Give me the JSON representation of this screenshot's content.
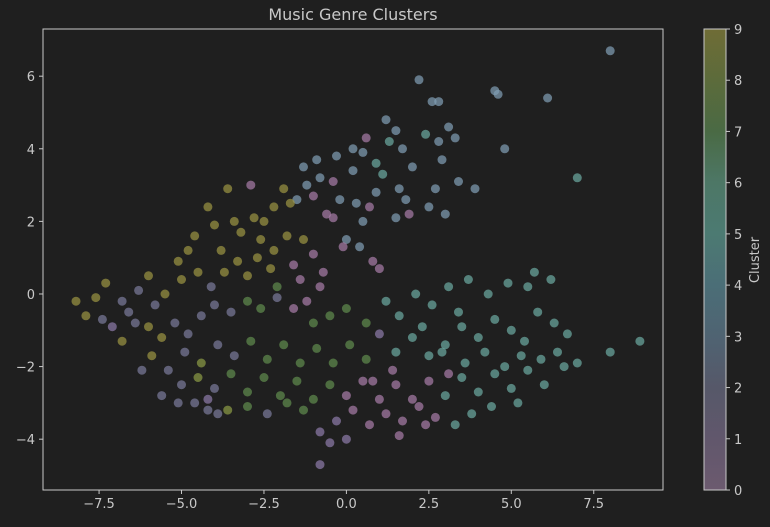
{
  "chart_data": {
    "type": "scatter",
    "title": "Music Genre Clusters",
    "xlabel": "",
    "ylabel": "",
    "xlim": [
      -9.2,
      9.6
    ],
    "ylim": [
      -5.4,
      7.3
    ],
    "xticks": [
      -7.5,
      -5.0,
      -2.5,
      0.0,
      2.5,
      5.0,
      7.5
    ],
    "yticks": [
      -4,
      -2,
      0,
      2,
      4,
      6
    ],
    "xtick_labels": [
      "−7.5",
      "−5.0",
      "−2.5",
      "0.0",
      "2.5",
      "5.0",
      "7.5"
    ],
    "ytick_labels": [
      "−4",
      "−2",
      "0",
      "2",
      "4",
      "6"
    ],
    "grid": false,
    "colorbar": {
      "label": "Cluster",
      "min": 0,
      "max": 9,
      "ticks": [
        0,
        1,
        2,
        3,
        4,
        5,
        6,
        7,
        8,
        9
      ],
      "tick_labels": [
        "0",
        "1",
        "2",
        "3",
        "4",
        "5",
        "6",
        "7",
        "8",
        "9"
      ],
      "colors": [
        "#6c5a6f",
        "#61576c",
        "#565869",
        "#4f6372",
        "#4b6e77",
        "#4c7a72",
        "#4d7766",
        "#4a6a44",
        "#5c6b3b",
        "#6f6c36"
      ]
    },
    "cluster_colors": {
      "0": "#a67ca6",
      "1": "#8c7aa8",
      "2": "#7a7a9a",
      "3": "#7f9db3",
      "5": "#6ba8a0",
      "7": "#5f8a4d",
      "8": "#8a9a45",
      "9": "#9a9342"
    },
    "points": [
      {
        "x": 8.0,
        "y": 6.7,
        "c": 3
      },
      {
        "x": 6.1,
        "y": 5.4,
        "c": 3
      },
      {
        "x": 4.5,
        "y": 5.6,
        "c": 3
      },
      {
        "x": 4.6,
        "y": 5.5,
        "c": 3
      },
      {
        "x": 2.2,
        "y": 5.9,
        "c": 3
      },
      {
        "x": 2.6,
        "y": 5.3,
        "c": 3
      },
      {
        "x": 2.8,
        "y": 5.3,
        "c": 3
      },
      {
        "x": 4.8,
        "y": 4.0,
        "c": 3
      },
      {
        "x": 7.0,
        "y": 3.2,
        "c": 5
      },
      {
        "x": 3.1,
        "y": 4.6,
        "c": 3
      },
      {
        "x": 2.4,
        "y": 4.4,
        "c": 5
      },
      {
        "x": 1.7,
        "y": 4.0,
        "c": 3
      },
      {
        "x": 1.3,
        "y": 4.2,
        "c": 5
      },
      {
        "x": 0.9,
        "y": 3.6,
        "c": 5
      },
      {
        "x": 0.2,
        "y": 3.4,
        "c": 3
      },
      {
        "x": -0.3,
        "y": 3.8,
        "c": 3
      },
      {
        "x": -0.8,
        "y": 3.2,
        "c": 3
      },
      {
        "x": 0.5,
        "y": 3.9,
        "c": 3
      },
      {
        "x": 1.1,
        "y": 3.3,
        "c": 5
      },
      {
        "x": 1.6,
        "y": 2.9,
        "c": 3
      },
      {
        "x": 2.0,
        "y": 3.5,
        "c": 3
      },
      {
        "x": 2.9,
        "y": 3.7,
        "c": 3
      },
      {
        "x": 3.4,
        "y": 3.1,
        "c": 3
      },
      {
        "x": 3.9,
        "y": 2.9,
        "c": 3
      },
      {
        "x": 3.0,
        "y": 2.2,
        "c": 3
      },
      {
        "x": 2.5,
        "y": 2.4,
        "c": 3
      },
      {
        "x": 1.8,
        "y": 2.6,
        "c": 3
      },
      {
        "x": 0.9,
        "y": 2.8,
        "c": 3
      },
      {
        "x": 0.3,
        "y": 2.5,
        "c": 3
      },
      {
        "x": -0.2,
        "y": 2.6,
        "c": 3
      },
      {
        "x": -0.6,
        "y": 2.2,
        "c": 0
      },
      {
        "x": -0.4,
        "y": 2.1,
        "c": 0
      },
      {
        "x": 0.5,
        "y": 2.0,
        "c": 3
      },
      {
        "x": 1.5,
        "y": 2.1,
        "c": 3
      },
      {
        "x": 0.0,
        "y": 1.5,
        "c": 3
      },
      {
        "x": -0.1,
        "y": 1.3,
        "c": 0
      },
      {
        "x": 0.4,
        "y": 1.3,
        "c": 3
      },
      {
        "x": 0.8,
        "y": 0.9,
        "c": 0
      },
      {
        "x": 1.0,
        "y": 0.7,
        "c": 0
      },
      {
        "x": -1.2,
        "y": 3.0,
        "c": 3
      },
      {
        "x": -1.0,
        "y": 2.7,
        "c": 0
      },
      {
        "x": -1.5,
        "y": 2.6,
        "c": 3
      },
      {
        "x": -1.9,
        "y": 2.9,
        "c": 9
      },
      {
        "x": -1.7,
        "y": 2.5,
        "c": 9
      },
      {
        "x": -2.2,
        "y": 2.4,
        "c": 9
      },
      {
        "x": -2.5,
        "y": 2.0,
        "c": 9
      },
      {
        "x": -2.8,
        "y": 2.1,
        "c": 9
      },
      {
        "x": -3.2,
        "y": 1.7,
        "c": 9
      },
      {
        "x": -3.6,
        "y": 2.9,
        "c": 9
      },
      {
        "x": -2.9,
        "y": 3.0,
        "c": 0
      },
      {
        "x": -4.2,
        "y": 2.4,
        "c": 9
      },
      {
        "x": -4.6,
        "y": 1.6,
        "c": 9
      },
      {
        "x": -4.8,
        "y": 1.2,
        "c": 9
      },
      {
        "x": -3.8,
        "y": 1.2,
        "c": 9
      },
      {
        "x": -3.3,
        "y": 0.9,
        "c": 9
      },
      {
        "x": -2.7,
        "y": 1.0,
        "c": 9
      },
      {
        "x": -2.2,
        "y": 1.2,
        "c": 9
      },
      {
        "x": -1.8,
        "y": 1.6,
        "c": 9
      },
      {
        "x": -1.3,
        "y": 1.5,
        "c": 9
      },
      {
        "x": -1.0,
        "y": 1.1,
        "c": 0
      },
      {
        "x": -1.6,
        "y": 0.8,
        "c": 0
      },
      {
        "x": -2.3,
        "y": 0.7,
        "c": 9
      },
      {
        "x": -3.0,
        "y": 0.5,
        "c": 9
      },
      {
        "x": -3.7,
        "y": 0.6,
        "c": 9
      },
      {
        "x": -4.1,
        "y": 0.2,
        "c": 2
      },
      {
        "x": -4.5,
        "y": 0.6,
        "c": 9
      },
      {
        "x": -5.0,
        "y": 0.4,
        "c": 9
      },
      {
        "x": -5.5,
        "y": 0.0,
        "c": 9
      },
      {
        "x": -6.0,
        "y": 0.5,
        "c": 9
      },
      {
        "x": -6.3,
        "y": 0.1,
        "c": 2
      },
      {
        "x": -6.8,
        "y": -0.2,
        "c": 2
      },
      {
        "x": -7.3,
        "y": 0.3,
        "c": 9
      },
      {
        "x": -7.6,
        "y": -0.1,
        "c": 9
      },
      {
        "x": -8.2,
        "y": -0.2,
        "c": 9
      },
      {
        "x": -7.9,
        "y": -0.6,
        "c": 9
      },
      {
        "x": -7.4,
        "y": -0.7,
        "c": 2
      },
      {
        "x": -7.1,
        "y": -0.9,
        "c": 1
      },
      {
        "x": -6.8,
        "y": -1.3,
        "c": 9
      },
      {
        "x": -6.4,
        "y": -0.8,
        "c": 2
      },
      {
        "x": -6.0,
        "y": -0.9,
        "c": 9
      },
      {
        "x": -5.6,
        "y": -1.2,
        "c": 9
      },
      {
        "x": -5.2,
        "y": -0.8,
        "c": 2
      },
      {
        "x": -4.8,
        "y": -1.1,
        "c": 2
      },
      {
        "x": -4.4,
        "y": -0.6,
        "c": 2
      },
      {
        "x": -4.0,
        "y": -0.3,
        "c": 2
      },
      {
        "x": -3.5,
        "y": -0.5,
        "c": 2
      },
      {
        "x": -3.0,
        "y": -0.2,
        "c": 7
      },
      {
        "x": -2.6,
        "y": -0.4,
        "c": 7
      },
      {
        "x": -2.1,
        "y": -0.1,
        "c": 2
      },
      {
        "x": -1.6,
        "y": -0.4,
        "c": 0
      },
      {
        "x": -1.2,
        "y": -0.2,
        "c": 0
      },
      {
        "x": -0.8,
        "y": 0.2,
        "c": 0
      },
      {
        "x": -0.5,
        "y": -0.6,
        "c": 7
      },
      {
        "x": 0.0,
        "y": -0.4,
        "c": 7
      },
      {
        "x": 0.6,
        "y": -0.8,
        "c": 7
      },
      {
        "x": 1.2,
        "y": -0.2,
        "c": 5
      },
      {
        "x": 1.6,
        "y": -0.6,
        "c": 5
      },
      {
        "x": 2.1,
        "y": 0.0,
        "c": 5
      },
      {
        "x": 2.6,
        "y": -0.3,
        "c": 5
      },
      {
        "x": 3.1,
        "y": 0.2,
        "c": 5
      },
      {
        "x": 3.7,
        "y": 0.4,
        "c": 5
      },
      {
        "x": 4.3,
        "y": 0.0,
        "c": 5
      },
      {
        "x": 4.9,
        "y": 0.3,
        "c": 5
      },
      {
        "x": 5.5,
        "y": 0.2,
        "c": 5
      },
      {
        "x": 5.8,
        "y": -0.5,
        "c": 5
      },
      {
        "x": 6.3,
        "y": -0.8,
        "c": 5
      },
      {
        "x": 6.7,
        "y": -1.1,
        "c": 5
      },
      {
        "x": 6.4,
        "y": -1.6,
        "c": 5
      },
      {
        "x": 5.9,
        "y": -1.8,
        "c": 5
      },
      {
        "x": 5.4,
        "y": -1.3,
        "c": 5
      },
      {
        "x": 5.0,
        "y": -1.0,
        "c": 5
      },
      {
        "x": 4.5,
        "y": -0.7,
        "c": 5
      },
      {
        "x": 4.0,
        "y": -1.2,
        "c": 5
      },
      {
        "x": 3.5,
        "y": -0.9,
        "c": 5
      },
      {
        "x": 3.0,
        "y": -1.4,
        "c": 5
      },
      {
        "x": 2.5,
        "y": -1.7,
        "c": 5
      },
      {
        "x": 2.0,
        "y": -1.2,
        "c": 5
      },
      {
        "x": 1.5,
        "y": -1.6,
        "c": 5
      },
      {
        "x": 1.0,
        "y": -1.1,
        "c": 1
      },
      {
        "x": 0.6,
        "y": -1.8,
        "c": 7
      },
      {
        "x": 0.1,
        "y": -1.4,
        "c": 7
      },
      {
        "x": -0.4,
        "y": -1.9,
        "c": 7
      },
      {
        "x": -0.9,
        "y": -1.5,
        "c": 7
      },
      {
        "x": -1.4,
        "y": -1.9,
        "c": 7
      },
      {
        "x": -1.9,
        "y": -1.4,
        "c": 7
      },
      {
        "x": -2.4,
        "y": -1.8,
        "c": 7
      },
      {
        "x": -2.9,
        "y": -1.3,
        "c": 7
      },
      {
        "x": -3.4,
        "y": -1.7,
        "c": 2
      },
      {
        "x": -3.9,
        "y": -1.4,
        "c": 2
      },
      {
        "x": -4.4,
        "y": -1.9,
        "c": 8
      },
      {
        "x": -4.9,
        "y": -1.6,
        "c": 2
      },
      {
        "x": -5.4,
        "y": -2.1,
        "c": 2
      },
      {
        "x": -5.9,
        "y": -1.7,
        "c": 9
      },
      {
        "x": -6.2,
        "y": -2.1,
        "c": 2
      },
      {
        "x": -5.0,
        "y": -2.5,
        "c": 2
      },
      {
        "x": -4.5,
        "y": -2.3,
        "c": 8
      },
      {
        "x": -4.0,
        "y": -2.6,
        "c": 2
      },
      {
        "x": -3.5,
        "y": -2.2,
        "c": 7
      },
      {
        "x": -3.0,
        "y": -2.7,
        "c": 7
      },
      {
        "x": -2.5,
        "y": -2.3,
        "c": 7
      },
      {
        "x": -2.0,
        "y": -2.8,
        "c": 7
      },
      {
        "x": -1.5,
        "y": -2.4,
        "c": 7
      },
      {
        "x": -1.0,
        "y": -2.9,
        "c": 7
      },
      {
        "x": -0.5,
        "y": -2.5,
        "c": 7
      },
      {
        "x": 0.0,
        "y": -2.8,
        "c": 0
      },
      {
        "x": 0.5,
        "y": -2.4,
        "c": 0
      },
      {
        "x": 1.0,
        "y": -2.9,
        "c": 0
      },
      {
        "x": 1.5,
        "y": -2.5,
        "c": 0
      },
      {
        "x": 2.0,
        "y": -2.9,
        "c": 0
      },
      {
        "x": 2.5,
        "y": -2.4,
        "c": 0
      },
      {
        "x": 3.0,
        "y": -2.8,
        "c": 5
      },
      {
        "x": 3.5,
        "y": -2.3,
        "c": 5
      },
      {
        "x": 4.0,
        "y": -2.7,
        "c": 5
      },
      {
        "x": 4.5,
        "y": -2.2,
        "c": 5
      },
      {
        "x": 5.0,
        "y": -2.6,
        "c": 5
      },
      {
        "x": 5.5,
        "y": -2.1,
        "c": 5
      },
      {
        "x": 6.0,
        "y": -2.5,
        "c": 5
      },
      {
        "x": 6.6,
        "y": -2.0,
        "c": 5
      },
      {
        "x": 7.0,
        "y": -1.9,
        "c": 5
      },
      {
        "x": 8.0,
        "y": -1.6,
        "c": 5
      },
      {
        "x": 8.9,
        "y": -1.3,
        "c": 5
      },
      {
        "x": 5.2,
        "y": -3.0,
        "c": 5
      },
      {
        "x": 4.4,
        "y": -3.1,
        "c": 5
      },
      {
        "x": 3.8,
        "y": -3.3,
        "c": 5
      },
      {
        "x": 3.3,
        "y": -3.6,
        "c": 5
      },
      {
        "x": 2.7,
        "y": -3.4,
        "c": 0
      },
      {
        "x": 2.2,
        "y": -3.1,
        "c": 0
      },
      {
        "x": 1.7,
        "y": -3.5,
        "c": 0
      },
      {
        "x": 1.2,
        "y": -3.3,
        "c": 0
      },
      {
        "x": 0.7,
        "y": -3.6,
        "c": 0
      },
      {
        "x": 0.2,
        "y": -3.2,
        "c": 0
      },
      {
        "x": -0.3,
        "y": -3.5,
        "c": 1
      },
      {
        "x": -0.8,
        "y": -3.8,
        "c": 1
      },
      {
        "x": -0.5,
        "y": -4.1,
        "c": 1
      },
      {
        "x": 0.0,
        "y": -4.0,
        "c": 1
      },
      {
        "x": 1.6,
        "y": -3.9,
        "c": 0
      },
      {
        "x": -0.8,
        "y": -4.7,
        "c": 1
      },
      {
        "x": -1.3,
        "y": -3.2,
        "c": 7
      },
      {
        "x": -1.8,
        "y": -3.0,
        "c": 7
      },
      {
        "x": -2.4,
        "y": -3.3,
        "c": 2
      },
      {
        "x": -3.0,
        "y": -3.1,
        "c": 7
      },
      {
        "x": -3.6,
        "y": -3.2,
        "c": 8
      },
      {
        "x": -4.2,
        "y": -3.2,
        "c": 2
      },
      {
        "x": -4.6,
        "y": -3.0,
        "c": 2
      },
      {
        "x": -4.2,
        "y": -2.9,
        "c": 1
      },
      {
        "x": -3.9,
        "y": -3.3,
        "c": 2
      },
      {
        "x": -5.1,
        "y": -3.0,
        "c": 2
      },
      {
        "x": -5.6,
        "y": -2.8,
        "c": 2
      },
      {
        "x": 2.4,
        "y": -3.6,
        "c": 0
      },
      {
        "x": 3.1,
        "y": -2.2,
        "c": 0
      },
      {
        "x": 1.4,
        "y": -2.1,
        "c": 0
      },
      {
        "x": 0.8,
        "y": -2.4,
        "c": 0
      },
      {
        "x": 2.9,
        "y": -1.6,
        "c": 5
      },
      {
        "x": 3.6,
        "y": -1.9,
        "c": 5
      },
      {
        "x": 4.2,
        "y": -1.6,
        "c": 5
      },
      {
        "x": 4.8,
        "y": -2.0,
        "c": 5
      },
      {
        "x": 5.3,
        "y": -1.7,
        "c": 5
      },
      {
        "x": -1.3,
        "y": 3.5,
        "c": 3
      },
      {
        "x": -0.9,
        "y": 3.7,
        "c": 3
      },
      {
        "x": 0.6,
        "y": 4.3,
        "c": 0
      },
      {
        "x": 1.2,
        "y": 4.8,
        "c": 3
      },
      {
        "x": 1.5,
        "y": 4.5,
        "c": 3
      },
      {
        "x": 2.8,
        "y": 4.2,
        "c": 3
      },
      {
        "x": 3.3,
        "y": 4.3,
        "c": 3
      },
      {
        "x": 0.2,
        "y": 4.0,
        "c": 3
      },
      {
        "x": -0.4,
        "y": 3.1,
        "c": 0
      },
      {
        "x": 0.7,
        "y": 2.4,
        "c": 0
      },
      {
        "x": 1.9,
        "y": 2.2,
        "c": 0
      },
      {
        "x": 2.7,
        "y": 2.9,
        "c": 3
      },
      {
        "x": -2.1,
        "y": 0.2,
        "c": 7
      },
      {
        "x": -1.4,
        "y": 0.4,
        "c": 0
      },
      {
        "x": -0.7,
        "y": 0.6,
        "c": 0
      },
      {
        "x": -2.6,
        "y": 1.5,
        "c": 9
      },
      {
        "x": -3.4,
        "y": 2.0,
        "c": 9
      },
      {
        "x": -4.0,
        "y": 1.9,
        "c": 9
      },
      {
        "x": -5.1,
        "y": 0.9,
        "c": 9
      },
      {
        "x": -5.8,
        "y": -0.3,
        "c": 2
      },
      {
        "x": -6.6,
        "y": -0.5,
        "c": 2
      },
      {
        "x": -1.0,
        "y": -0.8,
        "c": 7
      },
      {
        "x": 2.3,
        "y": -0.9,
        "c": 5
      },
      {
        "x": 3.4,
        "y": -0.5,
        "c": 5
      },
      {
        "x": 5.7,
        "y": 0.6,
        "c": 5
      },
      {
        "x": 6.2,
        "y": 0.4,
        "c": 5
      }
    ]
  }
}
